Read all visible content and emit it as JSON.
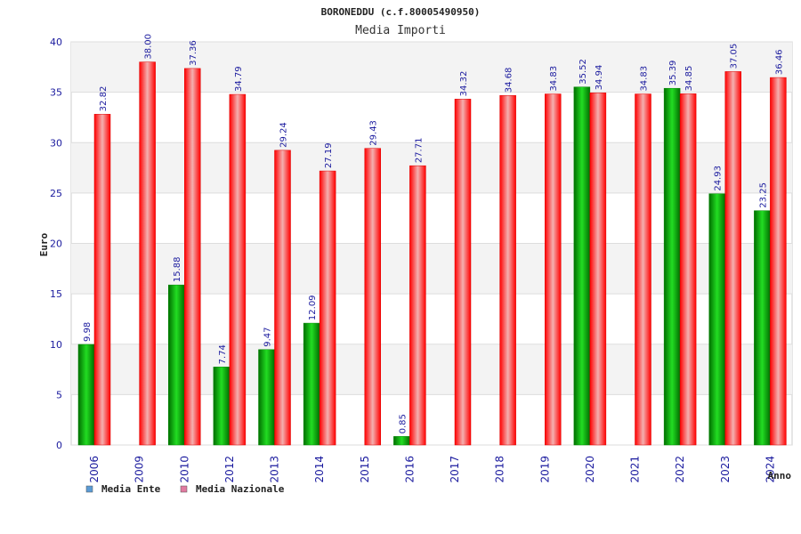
{
  "chart_data": {
    "type": "bar",
    "title": "BORONEDDU (c.f.80005490950)",
    "subtitle": "Media Importi",
    "xlabel": "Anno",
    "ylabel": "Euro",
    "ylim": [
      0,
      40
    ],
    "yticks": [
      0,
      5,
      10,
      15,
      20,
      25,
      30,
      35,
      40
    ],
    "grid": true,
    "legend_position": "bottom-left",
    "categories": [
      "2006",
      "2009",
      "2010",
      "2012",
      "2013",
      "2014",
      "2015",
      "2016",
      "2017",
      "2018",
      "2019",
      "2020",
      "2021",
      "2022",
      "2023",
      "2024"
    ],
    "series": [
      {
        "name": "Media Ente",
        "color": "#00b400",
        "legend_color": "#5b9bd5",
        "values": [
          9.98,
          null,
          15.88,
          7.74,
          9.47,
          12.09,
          null,
          0.85,
          null,
          null,
          null,
          35.52,
          null,
          35.39,
          24.93,
          23.25
        ],
        "labels": [
          "9.98",
          "",
          "15.88",
          "7.74",
          "9.47",
          "12.09",
          "",
          "0.85",
          "",
          "",
          "",
          "35.52",
          "",
          "35.39",
          "24.93",
          "23.25"
        ]
      },
      {
        "name": "Media Nazionale",
        "color": "#ff1a1a",
        "legend_color": "#e07aa0",
        "values": [
          32.82,
          38.0,
          37.36,
          34.79,
          29.24,
          27.19,
          29.43,
          27.71,
          34.32,
          34.68,
          34.83,
          34.94,
          34.83,
          34.85,
          37.05,
          36.46
        ],
        "labels": [
          "32.82",
          "38.00",
          "37.36",
          "34.79",
          "29.24",
          "27.19",
          "29.43",
          "27.71",
          "34.32",
          "34.68",
          "34.83",
          "34.94",
          "34.83",
          "34.85",
          "37.05",
          "36.46"
        ]
      }
    ]
  }
}
